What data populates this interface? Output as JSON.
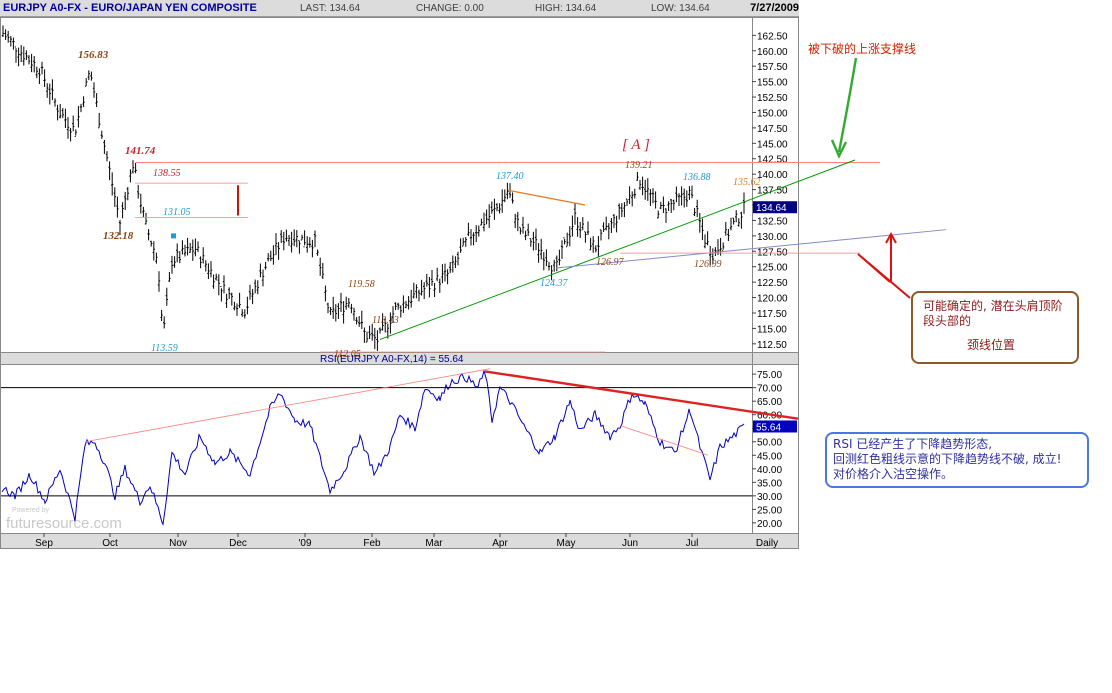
{
  "header": {
    "symbol": "EURJPY A0-FX - EURO/JAPAN YEN COMPOSITE",
    "last": "LAST: 134.64",
    "change": "CHANGE: 0.00",
    "high": "HIGH: 134.64",
    "low": "LOW: 134.64",
    "date": "7/27/2009"
  },
  "watermark": "futuresource.com",
  "watermark_small": "Powered by",
  "colors": {
    "price_bars": "#000000",
    "rsi_line": "#0000c0",
    "support_line": "#009900",
    "resistance_line": "#ff7f7f",
    "neckline": "#8888cc",
    "rsi_trendline": "#dd2222",
    "swing_label_brown": "#8b4513",
    "swing_label_red": "#cc2233",
    "swing_label_cyan": "#1e9ad6",
    "swing_label_orange": "#e07b20",
    "current_price_box": "#000080"
  },
  "chart_data": [
    {
      "type": "bar",
      "title": "",
      "subtype": "ohlc",
      "x_ticks": [
        "Sep",
        "Oct",
        "Nov",
        "Dec",
        "'09",
        "Feb",
        "Mar",
        "Apr",
        "May",
        "Jun",
        "Jul",
        "Daily"
      ],
      "y_ticks": [
        "162.50",
        "160.00",
        "157.50",
        "155.00",
        "152.50",
        "150.00",
        "147.50",
        "145.00",
        "142.50",
        "140.00",
        "137.50",
        "135.00",
        "132.50",
        "130.00",
        "127.50",
        "125.00",
        "122.50",
        "120.00",
        "117.50",
        "115.00",
        "112.50"
      ],
      "ylim": [
        111.5,
        164.5
      ],
      "current_price": "134.64",
      "approx_closes_by_month": {
        "x": [
          "Sep",
          "Oct",
          "Nov",
          "Dec",
          "'09",
          "Feb",
          "Mar",
          "Apr",
          "May",
          "Jun",
          "Jul"
        ],
        "y": [
          157.5,
          152,
          132,
          121,
          127,
          116,
          124,
          133,
          131,
          137,
          131
        ]
      },
      "swing_labels": [
        {
          "text": "156.83",
          "at": "late Sep 2008",
          "value": 156.83
        },
        {
          "text": "141.74",
          "at": "early Oct 2008",
          "value": 141.74
        },
        {
          "text": "138.55",
          "at": "mid Oct 2008",
          "value": 138.55
        },
        {
          "text": "132.18",
          "at": "early Oct 2008",
          "value": 132.18
        },
        {
          "text": "131.05",
          "at": "late Oct 2008",
          "value": 131.05
        },
        {
          "text": "113.59",
          "at": "late Oct 2008",
          "value": 113.59
        },
        {
          "text": "119.58",
          "at": "mid Jan 2009",
          "value": 119.58
        },
        {
          "text": "113.13",
          "at": "late Jan 2009",
          "value": 113.13
        },
        {
          "text": "112.05",
          "at": "late Jan 2009",
          "value": 112.05
        },
        {
          "text": "137.40",
          "at": "early Apr 2009",
          "value": 137.4
        },
        {
          "text": "124.37",
          "at": "late Apr 2009",
          "value": 124.37
        },
        {
          "text": "126.97",
          "at": "mid May 2009",
          "value": 126.97
        },
        {
          "text": "139.21",
          "at": "early Jun 2009",
          "value": 139.21
        },
        {
          "text": "136.88",
          "at": "late Jun 2009",
          "value": 136.88
        },
        {
          "text": "126.99",
          "at": "mid Jul 2009",
          "value": 126.99
        },
        {
          "text": "135.62",
          "at": "late Jul 2009",
          "value": 135.62
        }
      ],
      "pattern_label": "[ A ]"
    },
    {
      "type": "line",
      "title": "RSI(EURJPY A0-FX,14) = 55.64",
      "y_ticks": [
        "75.00",
        "70.00",
        "65.00",
        "60.00",
        "55.00",
        "50.00",
        "45.00",
        "40.00",
        "35.00",
        "30.00",
        "25.00",
        "20.00"
      ],
      "ylim": [
        17,
        78
      ],
      "reference_levels": [
        70,
        30
      ],
      "current_value": "55.64",
      "approx_values_by_month": {
        "x": [
          "Sep",
          "Oct",
          "Nov",
          "Dec",
          "'09",
          "Feb",
          "Mar",
          "Apr",
          "May",
          "Jun",
          "Jul"
        ],
        "y": [
          32,
          40,
          32,
          55,
          45,
          34,
          57,
          65,
          48,
          62,
          46
        ]
      }
    }
  ],
  "annotations": {
    "broken_support": "被下破的上涨支撑线",
    "head_shoulders_line1": "可能确定的, 潜在头肩顶阶",
    "head_shoulders_line2": "段头部的",
    "head_shoulders_line3": "颈线位置",
    "rsi_line1": "RSI 已经产生了下降趋势形态,",
    "rsi_line2": "回测红色粗线示意的下降趋势线不破, 成立!",
    "rsi_line3": "对价格介入沽空操作。"
  }
}
